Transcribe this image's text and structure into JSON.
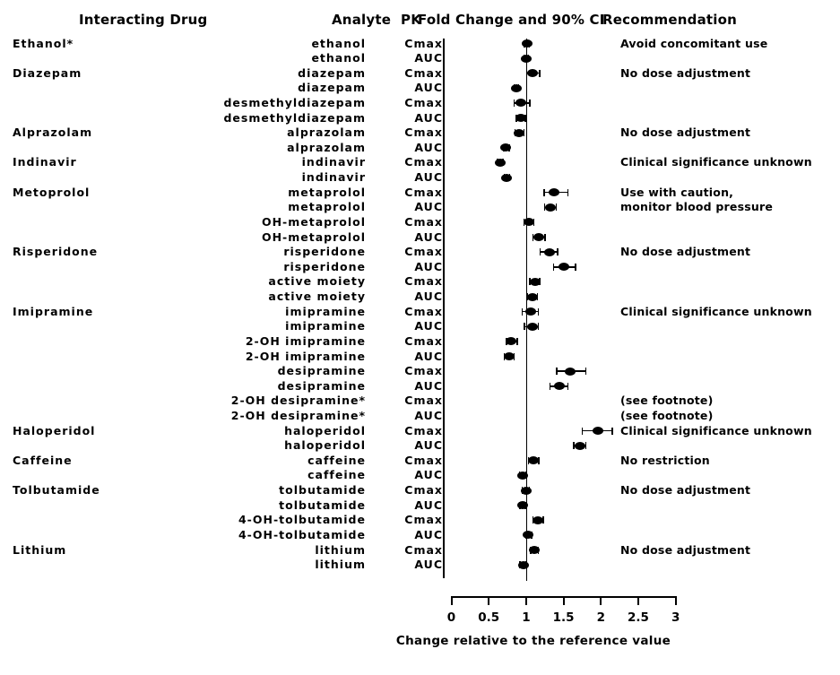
{
  "header": {
    "interacting_drug": "Interacting Drug",
    "analyte": "Analyte",
    "pk": "PK",
    "fold_change": "Fold Change and 90% CI",
    "recommendation": "Recommendation"
  },
  "chart_data": {
    "type": "scatter",
    "subtype": "forest-plot",
    "title": "Fold Change and 90% CI",
    "xlabel": "Change relative to the reference value",
    "xlim": [
      0,
      3
    ],
    "x_tick_values": [
      0,
      0.5,
      1,
      1.5,
      2,
      2.5,
      3
    ],
    "x_tick_labels": [
      "0",
      "0.5",
      "1",
      "1.5",
      "2",
      "2.5",
      "3"
    ],
    "reference_line_x": 1,
    "grid": false,
    "marker_color": "#000000",
    "rows": [
      {
        "drug": "Ethanol*",
        "analyte": "ethanol",
        "pk": "Cmax",
        "value": 1.01,
        "ci_low": 0.97,
        "ci_high": 1.05,
        "recommendation": "Avoid concomitant use"
      },
      {
        "drug": "",
        "analyte": "ethanol",
        "pk": "AUC",
        "value": 1.0,
        "ci_low": 0.96,
        "ci_high": 1.04,
        "recommendation": ""
      },
      {
        "drug": "Diazepam",
        "analyte": "diazepam",
        "pk": "Cmax",
        "value": 1.09,
        "ci_low": 1.0,
        "ci_high": 1.19,
        "recommendation": "No dose adjustment"
      },
      {
        "drug": "",
        "analyte": "diazepam",
        "pk": "AUC",
        "value": 0.87,
        "ci_low": 0.83,
        "ci_high": 0.91,
        "recommendation": ""
      },
      {
        "drug": "",
        "analyte": "desmethyldiazepam",
        "pk": "Cmax",
        "value": 0.93,
        "ci_low": 0.83,
        "ci_high": 1.06,
        "recommendation": ""
      },
      {
        "drug": "",
        "analyte": "desmethyldiazepam",
        "pk": "AUC",
        "value": 0.93,
        "ci_low": 0.86,
        "ci_high": 1.0,
        "recommendation": ""
      },
      {
        "drug": "Alprazolam",
        "analyte": "alprazolam",
        "pk": "Cmax",
        "value": 0.91,
        "ci_low": 0.84,
        "ci_high": 0.98,
        "recommendation": "No dose adjustment"
      },
      {
        "drug": "",
        "analyte": "alprazolam",
        "pk": "AUC",
        "value": 0.73,
        "ci_low": 0.69,
        "ci_high": 0.78,
        "recommendation": ""
      },
      {
        "drug": "Indinavir",
        "analyte": "indinavir",
        "pk": "Cmax",
        "value": 0.65,
        "ci_low": 0.61,
        "ci_high": 0.7,
        "recommendation": "Clinical significance unknown"
      },
      {
        "drug": "",
        "analyte": "indinavir",
        "pk": "AUC",
        "value": 0.74,
        "ci_low": 0.7,
        "ci_high": 0.79,
        "recommendation": ""
      },
      {
        "drug": "Metoprolol",
        "analyte": "metaprolol",
        "pk": "Cmax",
        "value": 1.37,
        "ci_low": 1.23,
        "ci_high": 1.57,
        "recommendation": "Use with caution,"
      },
      {
        "drug": "",
        "analyte": "metaprolol",
        "pk": "AUC",
        "value": 1.32,
        "ci_low": 1.24,
        "ci_high": 1.41,
        "recommendation": "monitor blood pressure"
      },
      {
        "drug": "",
        "analyte": "OH-metaprolol",
        "pk": "Cmax",
        "value": 1.04,
        "ci_low": 0.96,
        "ci_high": 1.11,
        "recommendation": ""
      },
      {
        "drug": "",
        "analyte": "OH-metaprolol",
        "pk": "AUC",
        "value": 1.17,
        "ci_low": 1.08,
        "ci_high": 1.26,
        "recommendation": ""
      },
      {
        "drug": "Risperidone",
        "analyte": "risperidone",
        "pk": "Cmax",
        "value": 1.31,
        "ci_low": 1.18,
        "ci_high": 1.43,
        "recommendation": "No dose adjustment"
      },
      {
        "drug": "",
        "analyte": "risperidone",
        "pk": "AUC",
        "value": 1.51,
        "ci_low": 1.36,
        "ci_high": 1.67,
        "recommendation": ""
      },
      {
        "drug": "",
        "analyte": "active moiety",
        "pk": "Cmax",
        "value": 1.12,
        "ci_low": 1.04,
        "ci_high": 1.19,
        "recommendation": ""
      },
      {
        "drug": "",
        "analyte": "active moiety",
        "pk": "AUC",
        "value": 1.08,
        "ci_low": 1.01,
        "ci_high": 1.16,
        "recommendation": ""
      },
      {
        "drug": "Imipramine",
        "analyte": "imipramine",
        "pk": "Cmax",
        "value": 1.06,
        "ci_low": 0.94,
        "ci_high": 1.17,
        "recommendation": "Clinical significance unknown"
      },
      {
        "drug": "",
        "analyte": "imipramine",
        "pk": "AUC",
        "value": 1.08,
        "ci_low": 0.97,
        "ci_high": 1.17,
        "recommendation": ""
      },
      {
        "drug": "",
        "analyte": "2-OH imipramine",
        "pk": "Cmax",
        "value": 0.8,
        "ci_low": 0.73,
        "ci_high": 0.89,
        "recommendation": ""
      },
      {
        "drug": "",
        "analyte": "2-OH imipramine",
        "pk": "AUC",
        "value": 0.77,
        "ci_low": 0.7,
        "ci_high": 0.85,
        "recommendation": ""
      },
      {
        "drug": "",
        "analyte": "desipramine",
        "pk": "Cmax",
        "value": 1.59,
        "ci_low": 1.4,
        "ci_high": 1.81,
        "recommendation": ""
      },
      {
        "drug": "",
        "analyte": "desipramine",
        "pk": "AUC",
        "value": 1.44,
        "ci_low": 1.31,
        "ci_high": 1.57,
        "recommendation": ""
      },
      {
        "drug": "",
        "analyte": "2-OH desipramine*",
        "pk": "Cmax",
        "value": null,
        "ci_low": null,
        "ci_high": null,
        "recommendation": "(see footnote)"
      },
      {
        "drug": "",
        "analyte": "2-OH desipramine*",
        "pk": "AUC",
        "value": null,
        "ci_low": null,
        "ci_high": null,
        "recommendation": "(see footnote)"
      },
      {
        "drug": "Haloperidol",
        "analyte": "haloperidol",
        "pk": "Cmax",
        "value": 1.96,
        "ci_low": 1.74,
        "ci_high": 2.16,
        "recommendation": "Clinical significance unknown"
      },
      {
        "drug": "",
        "analyte": "haloperidol",
        "pk": "AUC",
        "value": 1.72,
        "ci_low": 1.63,
        "ci_high": 1.81,
        "recommendation": ""
      },
      {
        "drug": "Caffeine",
        "analyte": "caffeine",
        "pk": "Cmax",
        "value": 1.1,
        "ci_low": 1.02,
        "ci_high": 1.18,
        "recommendation": "No restriction"
      },
      {
        "drug": "",
        "analyte": "caffeine",
        "pk": "AUC",
        "value": 0.95,
        "ci_low": 0.9,
        "ci_high": 1.01,
        "recommendation": ""
      },
      {
        "drug": "Tolbutamide",
        "analyte": "tolbutamide",
        "pk": "Cmax",
        "value": 1.0,
        "ci_low": 0.94,
        "ci_high": 1.05,
        "recommendation": "No dose adjustment"
      },
      {
        "drug": "",
        "analyte": "tolbutamide",
        "pk": "AUC",
        "value": 0.95,
        "ci_low": 0.91,
        "ci_high": 1.0,
        "recommendation": ""
      },
      {
        "drug": "",
        "analyte": "4-OH-tolbutamide",
        "pk": "Cmax",
        "value": 1.16,
        "ci_low": 1.08,
        "ci_high": 1.24,
        "recommendation": ""
      },
      {
        "drug": "",
        "analyte": "4-OH-tolbutamide",
        "pk": "AUC",
        "value": 1.03,
        "ci_low": 0.99,
        "ci_high": 1.08,
        "recommendation": ""
      },
      {
        "drug": "Lithium",
        "analyte": "lithium",
        "pk": "Cmax",
        "value": 1.11,
        "ci_low": 1.05,
        "ci_high": 1.17,
        "recommendation": "No dose adjustment"
      },
      {
        "drug": "",
        "analyte": "lithium",
        "pk": "AUC",
        "value": 0.96,
        "ci_low": 0.91,
        "ci_high": 1.01,
        "recommendation": ""
      }
    ]
  }
}
